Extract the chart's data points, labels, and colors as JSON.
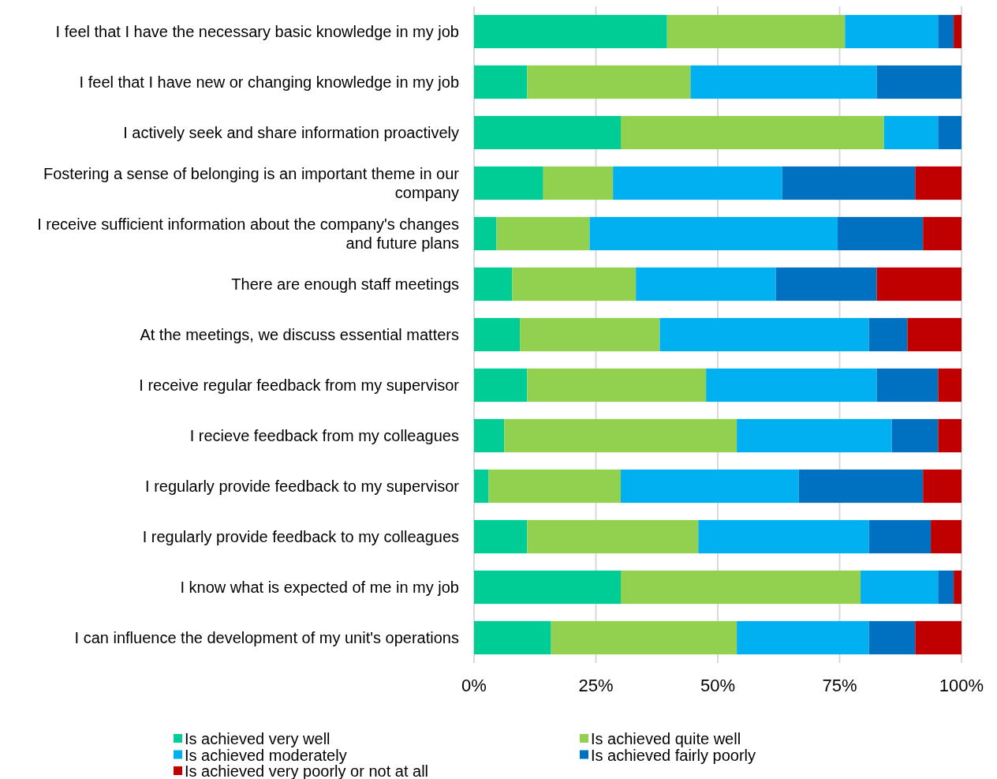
{
  "chart_data": {
    "type": "bar",
    "orientation": "horizontal",
    "stacked": true,
    "categories": [
      "I feel that I have the necessary basic knowledge in my job",
      "I feel that I have new or changing knowledge in my job",
      "I actively seek and share information proactively",
      "Fostering a sense of belonging is an important theme in our company",
      "I receive sufficient information about the company's changes and future plans",
      "There are enough staff meetings",
      "At the meetings, we discuss essential matters",
      "I receive regular feedback from my supervisor",
      "I recieve feedback from my colleagues",
      "I regularly provide feedback to my supervisor",
      "I regularly provide feedback to my colleagues",
      "I know what is expected of me in my job",
      "I can influence the development of my unit's operations"
    ],
    "series": [
      {
        "name": "Is achieved very well",
        "color": "#00cc96",
        "values": [
          39.6,
          10.9,
          30.1,
          14.2,
          4.6,
          7.8,
          9.4,
          10.9,
          6.2,
          3.0,
          10.9,
          30.1,
          15.8
        ]
      },
      {
        "name": "Is achieved quite well",
        "color": "#92d050",
        "values": [
          36.5,
          33.5,
          54.0,
          14.3,
          19.1,
          25.4,
          28.7,
          36.7,
          47.7,
          27.1,
          35.1,
          49.2,
          38.1
        ]
      },
      {
        "name": "Is achieved moderately",
        "color": "#00b0f0",
        "values": [
          19.1,
          38.2,
          11.1,
          34.7,
          50.9,
          28.7,
          42.9,
          35.0,
          31.8,
          36.5,
          35.0,
          15.9,
          27.1
        ]
      },
      {
        "name": "Is achieved fairly poorly",
        "color": "#0070c0",
        "values": [
          3.2,
          17.4,
          4.8,
          27.3,
          17.5,
          20.7,
          7.9,
          12.6,
          9.5,
          25.5,
          12.7,
          3.2,
          9.5
        ]
      },
      {
        "name": "Is achieved very poorly or not at all",
        "color": "#c00000",
        "values": [
          1.6,
          0,
          0,
          9.5,
          7.9,
          17.4,
          11.1,
          4.8,
          4.8,
          7.9,
          6.3,
          1.6,
          9.5
        ]
      }
    ],
    "xlim": [
      0,
      100
    ],
    "xticks": [
      {
        "value": 0,
        "label": "0%"
      },
      {
        "value": 25,
        "label": "25%"
      },
      {
        "value": 50,
        "label": "50%"
      },
      {
        "value": 75,
        "label": "75%"
      },
      {
        "value": 100,
        "label": "100%"
      }
    ],
    "grid": "x",
    "legend": "bottom"
  }
}
